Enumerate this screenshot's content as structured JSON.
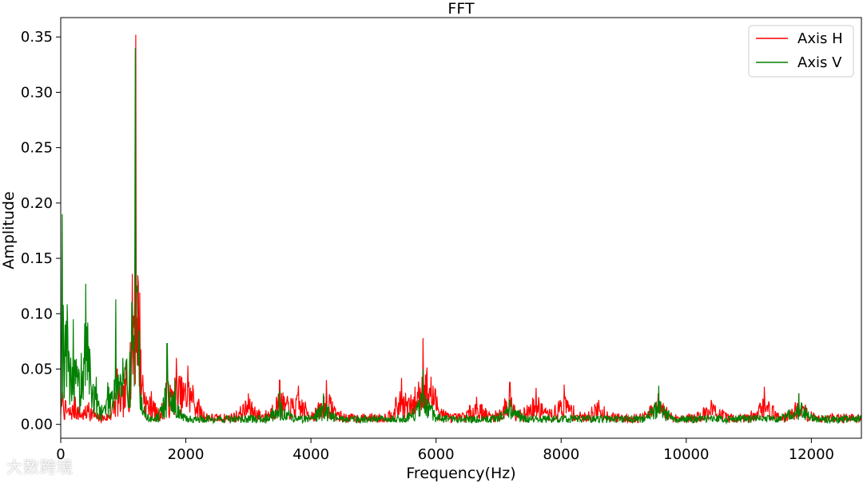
{
  "chart_data": {
    "type": "line",
    "title": "FFT",
    "xlabel": "Frequency(Hz)",
    "ylabel": "Amplitude",
    "xlim": [
      0,
      12800
    ],
    "ylim": [
      -0.0125,
      0.3675
    ],
    "xticks": [
      0,
      2000,
      4000,
      6000,
      8000,
      10000,
      12000
    ],
    "xtick_labels": [
      "0",
      "2000",
      "4000",
      "6000",
      "8000",
      "10000",
      "12000"
    ],
    "yticks": [
      0.0,
      0.05,
      0.1,
      0.15,
      0.2,
      0.25,
      0.3,
      0.35
    ],
    "ytick_labels": [
      "0.00",
      "0.05",
      "0.10",
      "0.15",
      "0.20",
      "0.25",
      "0.30",
      "0.35"
    ],
    "grid": false,
    "legend": "top-right",
    "series": [
      {
        "name": "Axis H",
        "color": "#ff0000",
        "peaks": [
          [
            30,
            0.03
          ],
          [
            230,
            0.025
          ],
          [
            450,
            0.02
          ],
          [
            900,
            0.05
          ],
          [
            1050,
            0.055
          ],
          [
            1200,
            0.352
          ],
          [
            1300,
            0.035
          ],
          [
            1450,
            0.03
          ],
          [
            1700,
            0.05
          ],
          [
            1850,
            0.06
          ],
          [
            2030,
            0.053
          ],
          [
            2100,
            0.02
          ],
          [
            3000,
            0.028
          ],
          [
            3500,
            0.04
          ],
          [
            3800,
            0.035
          ],
          [
            4250,
            0.04
          ],
          [
            5450,
            0.042
          ],
          [
            5790,
            0.078
          ],
          [
            5950,
            0.035
          ],
          [
            6650,
            0.025
          ],
          [
            7180,
            0.038
          ],
          [
            7600,
            0.033
          ],
          [
            8050,
            0.036
          ],
          [
            8600,
            0.022
          ],
          [
            9550,
            0.028
          ],
          [
            10400,
            0.022
          ],
          [
            11250,
            0.034
          ],
          [
            11800,
            0.028
          ]
        ]
      },
      {
        "name": "Axis V",
        "color": "#008000",
        "peaks": [
          [
            25,
            0.19
          ],
          [
            65,
            0.05
          ],
          [
            110,
            0.085
          ],
          [
            200,
            0.095
          ],
          [
            280,
            0.04
          ],
          [
            400,
            0.127
          ],
          [
            430,
            0.092
          ],
          [
            570,
            0.043
          ],
          [
            750,
            0.038
          ],
          [
            880,
            0.113
          ],
          [
            990,
            0.06
          ],
          [
            1050,
            0.058
          ],
          [
            1190,
            0.34
          ],
          [
            1700,
            0.073
          ],
          [
            1830,
            0.04
          ],
          [
            3500,
            0.03
          ],
          [
            4200,
            0.028
          ],
          [
            5790,
            0.05
          ],
          [
            7180,
            0.022
          ],
          [
            9560,
            0.035
          ],
          [
            11800,
            0.028
          ]
        ]
      }
    ]
  },
  "watermark": "大数跨境"
}
